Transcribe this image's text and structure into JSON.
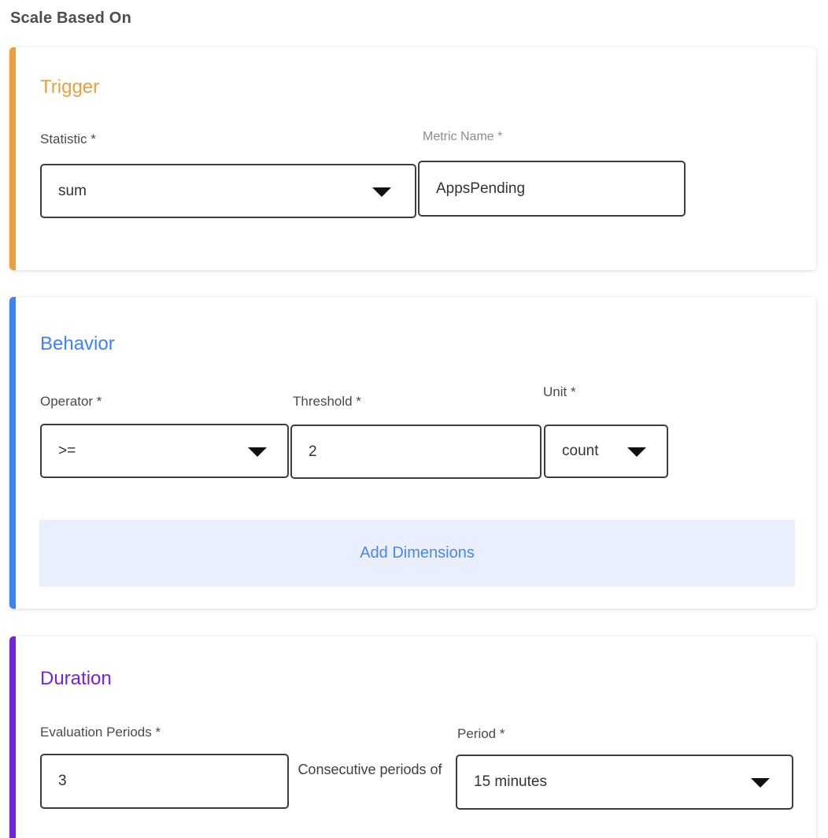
{
  "page": {
    "title": "Scale Based On"
  },
  "colors": {
    "trigger_accent": "#E9A13B",
    "behavior_accent": "#3E82F7",
    "duration_accent": "#7227D5",
    "add_dimensions_bg": "#E9EFFC",
    "add_dimensions_text": "#4C86F0"
  },
  "trigger": {
    "title": "Trigger",
    "statistic": {
      "label": "Statistic *",
      "value": "sum"
    },
    "metric_name": {
      "label": "Metric Name *",
      "value": "AppsPending"
    }
  },
  "behavior": {
    "title": "Behavior",
    "operator": {
      "label": "Operator *",
      "value": ">="
    },
    "threshold": {
      "label": "Threshold *",
      "value": "2"
    },
    "unit": {
      "label": "Unit *",
      "value": "count"
    },
    "add_dimensions_label": "Add Dimensions"
  },
  "duration": {
    "title": "Duration",
    "evaluation_periods": {
      "label": "Evaluation Periods *",
      "value": "3"
    },
    "consecutive_text": "Consecutive periods of",
    "period": {
      "label": "Period *",
      "value": "15 minutes"
    }
  }
}
